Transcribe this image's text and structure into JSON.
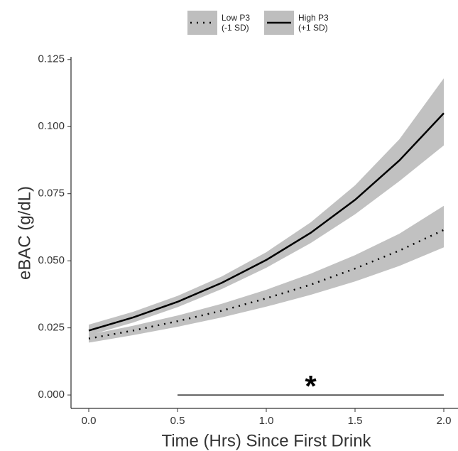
{
  "chart_data": {
    "type": "line",
    "x_label": "Time (Hrs) Since First Drink",
    "y_label": "eBAC (g/dL)",
    "x": [
      0,
      0.25,
      0.5,
      0.75,
      1.0,
      1.25,
      1.5,
      1.75,
      2.0
    ],
    "series": [
      {
        "name": "Low P3\n(-1 SD)",
        "color": "#000000",
        "linestyle": "dotted",
        "band_color": "#bebebe",
        "values": [
          0.021,
          0.024,
          0.0275,
          0.0314,
          0.036,
          0.0411,
          0.0471,
          0.0538,
          0.0615
        ],
        "lower": [
          0.0195,
          0.0223,
          0.0254,
          0.0289,
          0.0329,
          0.0373,
          0.0423,
          0.0481,
          0.055
        ],
        "upper": [
          0.0225,
          0.0258,
          0.0296,
          0.034,
          0.0392,
          0.0452,
          0.0521,
          0.0601,
          0.0705
        ]
      },
      {
        "name": "High P3\n(+1 SD)",
        "color": "#000000",
        "linestyle": "solid",
        "band_color": "#bebebe",
        "values": [
          0.024,
          0.0289,
          0.0347,
          0.0418,
          0.0503,
          0.0604,
          0.0727,
          0.0874,
          0.105
        ],
        "lower": [
          0.0222,
          0.027,
          0.0327,
          0.0395,
          0.0474,
          0.0566,
          0.0673,
          0.0797,
          0.093
        ],
        "upper": [
          0.0262,
          0.031,
          0.0369,
          0.0442,
          0.0532,
          0.0643,
          0.0781,
          0.0953,
          0.118
        ]
      }
    ],
    "xlim": [
      -0.1,
      2.1
    ],
    "ylim": [
      -0.005,
      0.126
    ],
    "xticks": [
      {
        "value": 0,
        "label": "0.0"
      },
      0.5,
      {
        "value": 1,
        "label": "1.0"
      },
      1.5,
      {
        "value": 2,
        "label": "2.0"
      }
    ],
    "yticks": [
      {
        "value": 0,
        "label": "0.000"
      },
      {
        "value": 0.025,
        "label": "0.025"
      },
      {
        "value": 0.05,
        "label": "0.050"
      },
      {
        "value": 0.075,
        "label": "0.075"
      },
      {
        "value": 0.1,
        "label": "0.100"
      },
      {
        "value": 0.125,
        "label": "0.125"
      }
    ],
    "segment": {
      "x": [
        0.5,
        2.0
      ],
      "y": 0
    },
    "annotation": {
      "text": "*",
      "x": 1.25,
      "y": 0.004
    },
    "legend": "top",
    "grid": false
  }
}
